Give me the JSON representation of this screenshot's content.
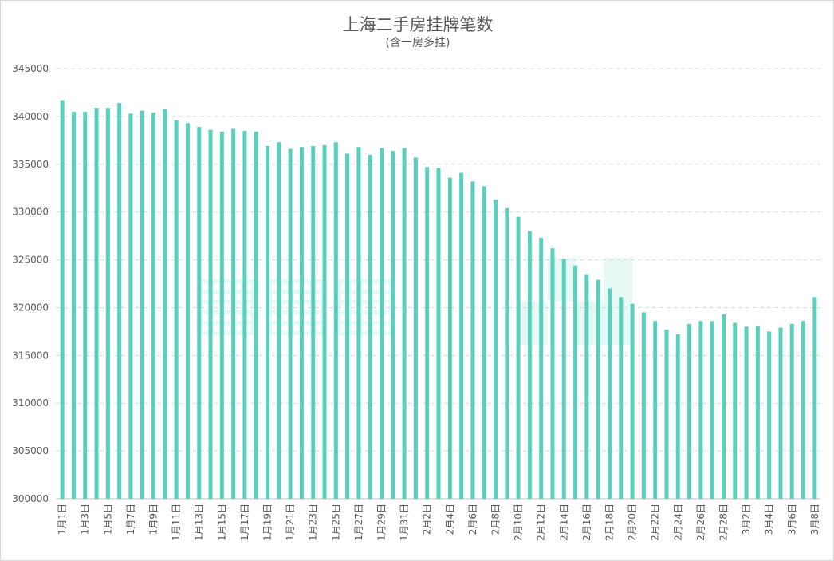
{
  "chart_data": {
    "type": "bar",
    "title": "上海二手房挂牌笔数",
    "subtitle": "(含一房多挂)",
    "xlabel": "",
    "ylabel": "",
    "ylim": [
      300000,
      345000
    ],
    "y_ticks": [
      300000,
      305000,
      310000,
      315000,
      320000,
      325000,
      330000,
      335000,
      340000,
      345000
    ],
    "grid": true,
    "legend": "none",
    "bar_color": "#5bcfbe",
    "grid_color": "#d9d9d9",
    "categories": [
      "1月1日",
      "1月2日",
      "1月3日",
      "1月4日",
      "1月5日",
      "1月6日",
      "1月7日",
      "1月8日",
      "1月9日",
      "1月10日",
      "1月11日",
      "1月12日",
      "1月13日",
      "1月14日",
      "1月15日",
      "1月16日",
      "1月17日",
      "1月18日",
      "1月19日",
      "1月20日",
      "1月21日",
      "1月22日",
      "1月23日",
      "1月24日",
      "1月25日",
      "1月26日",
      "1月27日",
      "1月28日",
      "1月29日",
      "1月30日",
      "1月31日",
      "2月1日",
      "2月2日",
      "2月3日",
      "2月4日",
      "2月5日",
      "2月6日",
      "2月7日",
      "2月8日",
      "2月9日",
      "2月10日",
      "2月11日",
      "2月12日",
      "2月13日",
      "2月14日",
      "2月15日",
      "2月16日",
      "2月17日",
      "2月18日",
      "2月19日",
      "2月20日",
      "2月21日",
      "2月22日",
      "2月23日",
      "2月24日",
      "2月25日",
      "2月26日",
      "2月27日",
      "2月28日",
      "3月1日",
      "3月2日",
      "3月3日",
      "3月4日",
      "3月5日",
      "3月6日",
      "3月7日",
      "3月8日"
    ],
    "tick_labels": [
      "1月1日",
      "1月3日",
      "1月5日",
      "1月7日",
      "1月9日",
      "1月11日",
      "1月13日",
      "1月15日",
      "1月17日",
      "1月19日",
      "1月21日",
      "1月23日",
      "1月25日",
      "1月27日",
      "1月29日",
      "1月31日",
      "2月2日",
      "2月4日",
      "2月6日",
      "2月8日",
      "2月10日",
      "2月12日",
      "2月14日",
      "2月16日",
      "2月18日",
      "2月20日",
      "2月22日",
      "2月24日",
      "2月26日",
      "2月28日",
      "3月2日",
      "3月4日",
      "3月6日",
      "3月8日"
    ],
    "values": [
      341700,
      340500,
      340500,
      340900,
      340900,
      341400,
      340300,
      340600,
      340400,
      340800,
      339600,
      339300,
      338900,
      338600,
      338400,
      338700,
      338500,
      338400,
      336900,
      337300,
      336600,
      336800,
      336900,
      337000,
      337300,
      336100,
      336800,
      336000,
      336700,
      336400,
      336700,
      335700,
      334700,
      334600,
      333600,
      334100,
      333200,
      332700,
      331300,
      330400,
      329500,
      328000,
      327300,
      326200,
      325100,
      324400,
      323500,
      322900,
      322000,
      321100,
      320400,
      319500,
      318600,
      317700,
      317200,
      318300,
      318600,
      318600,
      319300,
      318400,
      318000,
      318100,
      317500,
      317900,
      318300,
      318600,
      321100
    ]
  }
}
